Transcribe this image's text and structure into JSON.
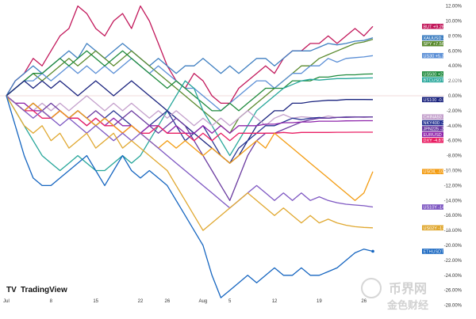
{
  "chart_data": {
    "type": "line",
    "title": "",
    "xlabel": "",
    "ylabel": "",
    "ylim": [
      -29.5,
      13.5
    ],
    "x_count": 42,
    "x_ticks": [
      {
        "i": 0,
        "label": "Jul"
      },
      {
        "i": 5,
        "label": "8"
      },
      {
        "i": 10,
        "label": "15"
      },
      {
        "i": 15,
        "label": "22"
      },
      {
        "i": 18,
        "label": "26"
      },
      {
        "i": 22,
        "label": "Aug"
      },
      {
        "i": 25,
        "label": "5"
      },
      {
        "i": 30,
        "label": "12"
      },
      {
        "i": 35,
        "label": "19"
      },
      {
        "i": 40,
        "label": "26"
      }
    ],
    "y_ticks": [
      "12.00%",
      "10.00%",
      "8.00%",
      "6.00%",
      "4.00%",
      "2.00%",
      "0.00%",
      "-2.00%",
      "-4.00%",
      "-6.00%",
      "-8.00%",
      "-10.00%",
      "-12.00%",
      "-14.00%",
      "-16.00%",
      "-18.00%",
      "-20.00%",
      "-22.00%",
      "-24.00%",
      "-26.00%",
      "-28.00%"
    ],
    "y_tick_values": [
      12,
      10,
      8,
      6,
      4,
      2,
      0,
      -2,
      -4,
      -6,
      -8,
      -10,
      -12,
      -14,
      -16,
      -18,
      -20,
      -22,
      -24,
      -26,
      -28
    ],
    "series": [
      {
        "name": "BUT",
        "label": "+9.28%",
        "color": "#c2185b",
        "last": 9.28,
        "values": [
          0,
          2,
          3,
          5,
          4,
          6,
          8,
          9,
          12,
          11,
          9,
          8,
          10,
          11,
          9,
          12,
          10,
          7,
          4,
          2,
          1,
          3,
          2,
          0,
          -1,
          -1,
          1,
          2,
          3,
          4,
          3,
          5,
          6,
          6,
          7,
          7,
          8,
          7,
          8,
          9,
          8,
          9.28
        ]
      },
      {
        "name": "XAUUSD",
        "label": "+7.75%",
        "color": "#3f7fc1",
        "last": 7.75,
        "values": [
          0,
          2,
          3,
          4,
          3,
          4,
          5,
          6,
          5,
          7,
          6,
          5,
          6,
          7,
          6,
          5,
          4,
          5,
          4,
          3,
          4,
          4,
          5,
          4,
          3,
          4,
          3,
          4,
          5,
          5,
          4,
          5,
          6,
          6,
          6,
          6.5,
          7,
          6.8,
          7,
          7.3,
          7.4,
          7.75
        ]
      },
      {
        "name": "SPY",
        "label": "+7.56%",
        "color": "#5a8a2e",
        "last": 7.56,
        "values": [
          0,
          1,
          2,
          3,
          2,
          3,
          4,
          5,
          4,
          5,
          6,
          5,
          4,
          5,
          6,
          5,
          4,
          3,
          2,
          1,
          0,
          -1,
          -2,
          -3,
          -4,
          -5,
          -3,
          -2,
          -1,
          0,
          1,
          2,
          3,
          4,
          4,
          5,
          5.5,
          6,
          6.5,
          7,
          7.2,
          7.56
        ]
      },
      {
        "name": "US30",
        "label": "+5.37%",
        "color": "#5b8fd6",
        "last": 5.37,
        "values": [
          0,
          1,
          2,
          2,
          3,
          2,
          3,
          4,
          3,
          4,
          3,
          4,
          3,
          4,
          5,
          4,
          3,
          4,
          3,
          2,
          1,
          1,
          0,
          -1,
          -2,
          -1,
          0,
          1,
          2,
          2,
          1,
          2,
          3,
          3,
          4,
          4,
          5,
          4.5,
          5,
          5.1,
          5.2,
          5.37
        ]
      },
      {
        "name": "US500",
        "label": "+2.92%",
        "color": "#1e8a3c",
        "last": 2.92,
        "values": [
          0,
          1,
          2,
          3,
          3,
          4,
          5,
          4,
          5,
          6,
          5,
          4,
          5,
          6,
          5,
          4,
          3,
          2,
          1,
          2,
          1,
          0,
          -1,
          -2,
          -2,
          -1,
          -2,
          -1,
          0,
          1,
          1,
          1,
          2,
          2,
          2,
          2.5,
          2.5,
          2.7,
          2.8,
          2.8,
          2.9,
          2.92
        ]
      },
      {
        "name": "BTCUSDT",
        "label": "+2.39%",
        "color": "#26a69a",
        "last": 2.39,
        "values": [
          0,
          -2,
          -4,
          -6,
          -8,
          -9,
          -10,
          -9,
          -8,
          -9,
          -10,
          -10,
          -9,
          -8,
          -9,
          -8,
          -6,
          -4,
          -2,
          0,
          2,
          1,
          -2,
          -4,
          -6,
          -8,
          -6,
          -4,
          -2,
          -1,
          0,
          1,
          1.5,
          2,
          2.2,
          2.1,
          2.2,
          2.3,
          2.3,
          2.35,
          2.37,
          2.39
        ]
      },
      {
        "name": "US100",
        "label": "-0.51%",
        "color": "#1a237e",
        "last": -0.51,
        "values": [
          0,
          1,
          2,
          1,
          2,
          1,
          2,
          1,
          0,
          1,
          2,
          1,
          0,
          1,
          2,
          1,
          0,
          -1,
          -2,
          -3,
          -4,
          -5,
          -6,
          -7,
          -8,
          -9,
          -8,
          -6,
          -4,
          -3,
          -2,
          -2,
          -1,
          -1,
          -0.8,
          -0.7,
          -0.6,
          -0.6,
          -0.5,
          -0.5,
          -0.5,
          -0.51
        ]
      },
      {
        "name": "CHINA50",
        "label": "-2.82%",
        "color": "#c4a0cc",
        "last": -2.82,
        "values": [
          0,
          -1,
          -1,
          -2,
          -1,
          -2,
          -1,
          -2,
          -1,
          0,
          -1,
          -2,
          -1,
          -2,
          -1,
          -2,
          -3,
          -2,
          -3,
          -2,
          -3,
          -4,
          -3,
          -4,
          -3,
          -4,
          -3,
          -2,
          -3,
          -4,
          -3,
          -2.5,
          -3,
          -2.8,
          -2.9,
          -3,
          -2.7,
          -2.9,
          -2.8,
          -2.8,
          -2.9,
          -2.82
        ]
      },
      {
        "name": "NKY400",
        "label": "-2.84%",
        "color": "#283593",
        "last": -2.84,
        "values": [
          0,
          -1,
          -2,
          -1,
          -2,
          -3,
          -2,
          -3,
          -2,
          -3,
          -4,
          -3,
          -2,
          -3,
          -4,
          -5,
          -4,
          -3,
          -2,
          -4,
          -6,
          -5,
          -4,
          -6,
          -8,
          -9,
          -7,
          -6,
          -5,
          -4,
          -4,
          -3.5,
          -3,
          -3.2,
          -3,
          -2.9,
          -3,
          -2.9,
          -2.85,
          -2.85,
          -2.84,
          -2.84
        ]
      },
      {
        "name": "JPN225",
        "label": "-2.85%",
        "color": "#6a3aa0",
        "last": -2.85,
        "values": [
          0,
          -1,
          -2,
          -1,
          -2,
          -1,
          -2,
          -3,
          -2,
          -3,
          -2,
          -3,
          -4,
          -3,
          -2,
          -3,
          -4,
          -5,
          -4,
          -3,
          -4,
          -6,
          -8,
          -10,
          -12,
          -14,
          -11,
          -8,
          -6,
          -5,
          -5,
          -4.5,
          -4,
          -3.5,
          -3.2,
          -3,
          -3,
          -2.9,
          -2.9,
          -2.86,
          -2.85,
          -2.85
        ]
      },
      {
        "name": "EURUSD",
        "label": "-3.33%",
        "color": "#8e24aa",
        "last": -3.33,
        "values": [
          0,
          -1,
          -1,
          -2,
          -2,
          -3,
          -2,
          -3,
          -3,
          -4,
          -3,
          -4,
          -3,
          -4,
          -4,
          -5,
          -4,
          -4,
          -5,
          -4,
          -5,
          -5,
          -4,
          -5,
          -4,
          -5,
          -4,
          -4,
          -4,
          -3.8,
          -3.8,
          -3.6,
          -3.6,
          -3.5,
          -3.5,
          -3.4,
          -3.4,
          -3.4,
          -3.35,
          -3.34,
          -3.33,
          -3.33
        ]
      },
      {
        "name": "DXY",
        "label": "-4.87%",
        "color": "#e91e63",
        "last": -4.87,
        "values": [
          0,
          -1,
          -2,
          -2,
          -3,
          -3,
          -2,
          -3,
          -3,
          -4,
          -3,
          -4,
          -4,
          -5,
          -4,
          -5,
          -5,
          -4,
          -5,
          -5,
          -5,
          -6,
          -5,
          -6,
          -5,
          -6,
          -5,
          -5,
          -5,
          -5,
          -5,
          -4.9,
          -5,
          -4.9,
          -4.9,
          -4.9,
          -4.9,
          -4.88,
          -4.88,
          -4.87,
          -4.87,
          -4.87
        ]
      },
      {
        "name": "USOIL",
        "label": "-10.13%",
        "color": "#f39c12",
        "last": -10.13,
        "values": [
          0,
          -1,
          -2,
          -1,
          -2,
          -3,
          -2,
          -3,
          -2,
          -3,
          -4,
          -3,
          -4,
          -5,
          -4,
          -5,
          -6,
          -7,
          -6,
          -7,
          -6,
          -7,
          -8,
          -7,
          -8,
          -9,
          -8,
          -7,
          -6,
          -7,
          -5,
          -6,
          -7,
          -8,
          -9,
          -10,
          -11,
          -12,
          -13,
          -14,
          -13,
          -10.13
        ]
      },
      {
        "name": "US10Y",
        "label": "-14.87%",
        "color": "#7e57c2",
        "last": -14.87,
        "values": [
          0,
          -1,
          -2,
          -3,
          -2,
          -3,
          -4,
          -3,
          -4,
          -5,
          -4,
          -5,
          -6,
          -5,
          -6,
          -5,
          -6,
          -7,
          -8,
          -9,
          -10,
          -11,
          -12,
          -13,
          -14,
          -15,
          -14,
          -13,
          -12,
          -13,
          -14,
          -13,
          -14,
          -13,
          -14,
          -13.5,
          -14,
          -14.3,
          -14.5,
          -14.6,
          -14.7,
          -14.87
        ]
      },
      {
        "name": "US02Y",
        "label": "-17.65%",
        "color": "#e0a830",
        "last": -17.65,
        "values": [
          0,
          -2,
          -4,
          -5,
          -4,
          -6,
          -5,
          -7,
          -6,
          -5,
          -7,
          -6,
          -5,
          -7,
          -6,
          -7,
          -8,
          -9,
          -10,
          -12,
          -14,
          -16,
          -18,
          -17,
          -16,
          -15,
          -14,
          -13,
          -14,
          -15,
          -16,
          -15,
          -16,
          -17,
          -16,
          -17,
          -16.5,
          -17,
          -17.3,
          -17.5,
          -17.6,
          -17.65
        ]
      },
      {
        "name": "ETHUSDT",
        "label": "-20.79%",
        "color": "#1565c0",
        "last": -20.79,
        "values": [
          0,
          -4,
          -8,
          -11,
          -12,
          -12,
          -11,
          -10,
          -9,
          -8,
          -10,
          -12,
          -10,
          -8,
          -10,
          -11,
          -10,
          -11,
          -12,
          -14,
          -16,
          -18,
          -20,
          -24,
          -27,
          -26,
          -25,
          -24,
          -25,
          -24,
          -23,
          -24,
          -24,
          -23,
          -24,
          -24,
          -23.5,
          -23,
          -22,
          -21,
          -20.5,
          -20.79
        ]
      }
    ]
  },
  "branding": {
    "logo_text": "TradingView",
    "watermark_cn": "币界网",
    "watermark_cn2": "金色财经"
  }
}
